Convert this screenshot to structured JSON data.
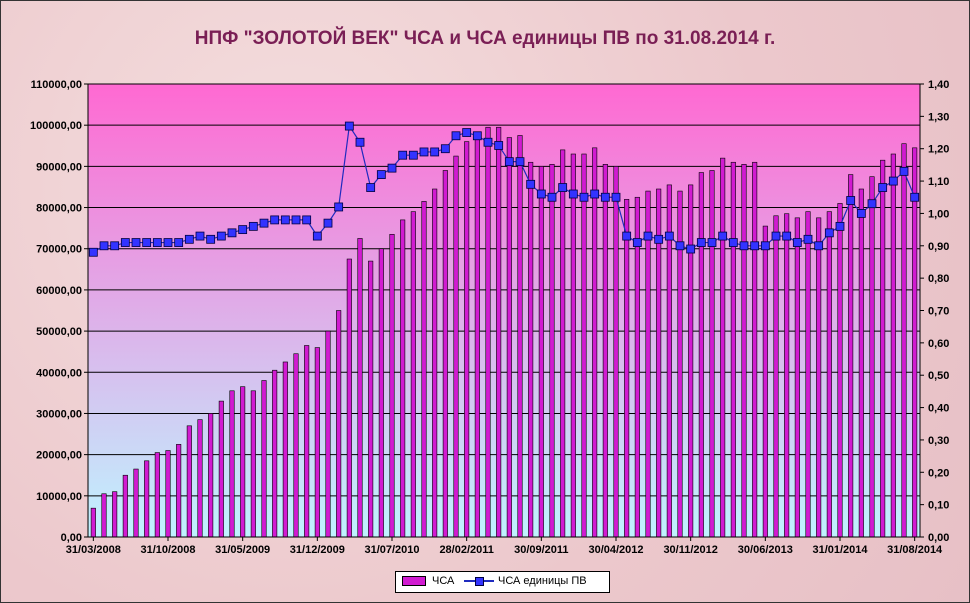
{
  "chart_data": {
    "type": "bar+line",
    "title": "НПФ \"ЗОЛОТОЙ ВЕК\" ЧСА и ЧСА единицы ПВ по 31.08.2014 г.",
    "x_tick_labels": [
      "31/03/2008",
      "31/10/2008",
      "31/05/2009",
      "31/12/2009",
      "31/07/2010",
      "28/02/2011",
      "30/09/2011",
      "30/04/2012",
      "30/11/2012",
      "30/06/2013",
      "31/01/2014",
      "31/08/2014"
    ],
    "y_left_ticks": [
      "0,00",
      "10000,00",
      "20000,00",
      "30000,00",
      "40000,00",
      "50000,00",
      "60000,00",
      "70000,00",
      "80000,00",
      "90000,00",
      "100000,00",
      "110000,00"
    ],
    "y_right_ticks": [
      "0,00",
      "0,10",
      "0,20",
      "0,30",
      "0,40",
      "0,50",
      "0,60",
      "0,70",
      "0,80",
      "0,90",
      "1,00",
      "1,10",
      "1,20",
      "1,30",
      "1,40"
    ],
    "ylim_left": [
      0,
      110000
    ],
    "ylim_right": [
      0,
      1.4
    ],
    "series": [
      {
        "name": "ЧСА",
        "kind": "bar",
        "axis": "left",
        "color": "#d11bd1",
        "values": [
          7000,
          10500,
          11000,
          15000,
          16500,
          18500,
          20500,
          21000,
          22500,
          27000,
          28500,
          30000,
          33000,
          35500,
          36500,
          35500,
          38000,
          40500,
          42500,
          44500,
          46500,
          46000,
          50000,
          55000,
          67500,
          72500,
          67000,
          70000,
          73500,
          77000,
          79000,
          81500,
          84500,
          89000,
          92500,
          96000,
          98000,
          99500,
          99500,
          97000,
          97500,
          91000,
          90000,
          90500,
          94000,
          93000,
          93000,
          94500,
          90500,
          90000,
          82000,
          82500,
          84000,
          84500,
          85500,
          84000,
          85500,
          88500,
          89000,
          92000,
          91000,
          90500,
          91000,
          75500,
          78000,
          78500,
          77500,
          79000,
          77500,
          79000,
          81000,
          88000,
          84500,
          87500,
          91500,
          93000,
          95500,
          94500
        ]
      },
      {
        "name": "ЧСА единицы ПВ",
        "kind": "line",
        "axis": "right",
        "color": "#1f2bbf",
        "values": [
          0.88,
          0.9,
          0.9,
          0.91,
          0.91,
          0.91,
          0.91,
          0.91,
          0.91,
          0.92,
          0.93,
          0.92,
          0.93,
          0.94,
          0.95,
          0.96,
          0.97,
          0.98,
          0.98,
          0.98,
          0.98,
          0.93,
          0.97,
          1.02,
          1.27,
          1.22,
          1.08,
          1.12,
          1.14,
          1.18,
          1.18,
          1.19,
          1.19,
          1.2,
          1.24,
          1.25,
          1.24,
          1.22,
          1.21,
          1.16,
          1.16,
          1.09,
          1.06,
          1.05,
          1.08,
          1.06,
          1.05,
          1.06,
          1.05,
          1.05,
          0.93,
          0.91,
          0.93,
          0.92,
          0.93,
          0.9,
          0.89,
          0.91,
          0.91,
          0.93,
          0.91,
          0.9,
          0.9,
          0.9,
          0.93,
          0.93,
          0.91,
          0.92,
          0.9,
          0.94,
          0.96,
          1.04,
          1.0,
          1.03,
          1.08,
          1.1,
          1.13,
          1.05
        ]
      }
    ],
    "grid": true,
    "legend_placement": "bottom"
  },
  "colors": {
    "plot_top": "#ff69d2",
    "plot_bottom": "#bff3ff",
    "bar_fill": "#d11bd1",
    "line": "#1f2bbf",
    "marker": "#3333ff"
  }
}
